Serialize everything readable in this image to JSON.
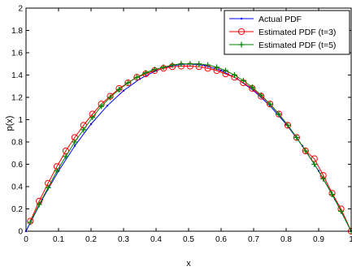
{
  "chart_data": {
    "type": "line",
    "title": "",
    "xlabel": "x",
    "ylabel": "p(x)",
    "xlim": [
      0,
      1
    ],
    "ylim": [
      0,
      2
    ],
    "xticks": [
      "0",
      "0.1",
      "0.2",
      "0.3",
      "0.4",
      "0.5",
      "0.6",
      "0.7",
      "0.8",
      "0.9",
      "1"
    ],
    "yticks": [
      "0",
      "0.2",
      "0.4",
      "0.6",
      "0.8",
      "1",
      "1.2",
      "1.4",
      "1.6",
      "1.8",
      "2"
    ],
    "grid": false,
    "legend_position": "top-right",
    "series": [
      {
        "name": "Actual PDF",
        "color": "#0000ff",
        "marker": "dot",
        "x": [
          0,
          0.05,
          0.1,
          0.15,
          0.2,
          0.25,
          0.3,
          0.35,
          0.4,
          0.45,
          0.5,
          0.55,
          0.6,
          0.65,
          0.7,
          0.75,
          0.8,
          0.85,
          0.9,
          0.95,
          1
        ],
        "y": [
          0,
          0.285,
          0.54,
          0.765,
          0.96,
          1.125,
          1.26,
          1.365,
          1.44,
          1.485,
          1.5,
          1.485,
          1.44,
          1.365,
          1.26,
          1.125,
          0.96,
          0.765,
          0.54,
          0.285,
          0
        ]
      },
      {
        "name": "Estimated PDF (t=3)",
        "color": "#ff0000",
        "marker": "circle",
        "x": [
          0.0132,
          0.0405,
          0.0678,
          0.0951,
          0.1224,
          0.1497,
          0.177,
          0.2043,
          0.2316,
          0.2589,
          0.2862,
          0.3135,
          0.3408,
          0.3681,
          0.3954,
          0.4227,
          0.45,
          0.4773,
          0.5046,
          0.5319,
          0.5592,
          0.5865,
          0.6138,
          0.6411,
          0.6684,
          0.6957,
          0.723,
          0.7503,
          0.7776,
          0.8049,
          0.8322,
          0.8595,
          0.8868,
          0.9141,
          0.9414,
          0.9687,
          1
        ],
        "y": [
          0.09,
          0.27,
          0.43,
          0.58,
          0.72,
          0.84,
          0.95,
          1.05,
          1.14,
          1.21,
          1.28,
          1.33,
          1.38,
          1.41,
          1.44,
          1.46,
          1.475,
          1.48,
          1.48,
          1.475,
          1.46,
          1.44,
          1.41,
          1.38,
          1.33,
          1.28,
          1.21,
          1.14,
          1.05,
          0.95,
          0.84,
          0.72,
          0.65,
          0.5,
          0.34,
          0.2,
          0
        ]
      },
      {
        "name": "Estimated PDF (t=5)",
        "color": "#008000",
        "marker": "plus",
        "x": [
          0.0132,
          0.0405,
          0.0678,
          0.0951,
          0.1224,
          0.1497,
          0.177,
          0.2043,
          0.2316,
          0.2589,
          0.2862,
          0.3135,
          0.3408,
          0.3681,
          0.3954,
          0.4227,
          0.45,
          0.4773,
          0.5046,
          0.5319,
          0.5592,
          0.5865,
          0.6138,
          0.6411,
          0.6684,
          0.6957,
          0.723,
          0.7503,
          0.7776,
          0.8049,
          0.8322,
          0.8595,
          0.8868,
          0.9141,
          0.9414,
          0.9687,
          1
        ],
        "y": [
          0.08,
          0.24,
          0.39,
          0.54,
          0.67,
          0.8,
          0.91,
          1.02,
          1.12,
          1.2,
          1.27,
          1.33,
          1.38,
          1.42,
          1.45,
          1.47,
          1.49,
          1.5,
          1.5,
          1.5,
          1.49,
          1.47,
          1.44,
          1.4,
          1.35,
          1.29,
          1.22,
          1.14,
          1.05,
          0.95,
          0.84,
          0.72,
          0.6,
          0.47,
          0.33,
          0.18,
          0
        ]
      }
    ]
  }
}
